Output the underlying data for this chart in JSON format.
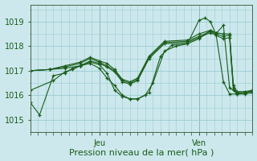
{
  "background_color": "#cce8ec",
  "grid_color": "#99ccd4",
  "line_color": "#1a5c1a",
  "marker_color": "#1a5c1a",
  "xlabel": "Pression niveau de la mer( hPa )",
  "xlabel_fontsize": 8,
  "tick_fontsize": 7,
  "ylim": [
    1014.5,
    1019.7
  ],
  "yticks": [
    1015,
    1016,
    1017,
    1018,
    1019
  ],
  "x_jeu": 90,
  "x_ven": 220,
  "xlim": [
    0,
    290
  ],
  "series": [
    [
      0,
      1015.7,
      12,
      1015.2,
      30,
      1016.8,
      45,
      1016.9,
      55,
      1017.1,
      65,
      1017.2,
      78,
      1017.3,
      90,
      1017.1,
      100,
      1016.7,
      110,
      1016.4,
      120,
      1016.0,
      130,
      1015.85,
      140,
      1015.85,
      150,
      1016.0,
      160,
      1016.5,
      175,
      1017.8,
      190,
      1018.0,
      205,
      1018.1,
      220,
      1019.05,
      228,
      1019.15,
      235,
      1019.0,
      242,
      1018.5,
      252,
      1018.85,
      260,
      1016.3,
      270,
      1016.1,
      280,
      1016.1,
      290,
      1016.2
    ],
    [
      0,
      1016.2,
      30,
      1016.6,
      45,
      1016.95,
      55,
      1017.05,
      65,
      1017.2,
      78,
      1017.35,
      90,
      1017.25,
      100,
      1016.9,
      110,
      1016.2,
      120,
      1015.95,
      130,
      1015.85,
      140,
      1015.85,
      155,
      1016.1,
      170,
      1017.6,
      185,
      1018.05,
      205,
      1018.1,
      220,
      1018.3,
      235,
      1018.65,
      242,
      1018.55,
      252,
      1016.55,
      260,
      1016.05,
      270,
      1016.05,
      280,
      1016.1,
      290,
      1016.2
    ],
    [
      0,
      1017.0,
      25,
      1017.05,
      45,
      1017.1,
      65,
      1017.2,
      78,
      1017.4,
      90,
      1017.3,
      100,
      1017.15,
      110,
      1016.95,
      120,
      1016.55,
      130,
      1016.45,
      140,
      1016.6,
      155,
      1017.5,
      175,
      1018.1,
      205,
      1018.15,
      220,
      1018.35,
      235,
      1018.55,
      242,
      1018.45,
      252,
      1018.3,
      260,
      1018.35,
      265,
      1016.2,
      270,
      1016.05,
      280,
      1016.05,
      290,
      1016.1
    ],
    [
      0,
      1017.0,
      25,
      1017.05,
      45,
      1017.15,
      65,
      1017.3,
      78,
      1017.5,
      90,
      1017.35,
      100,
      1017.2,
      110,
      1017.0,
      120,
      1016.6,
      130,
      1016.5,
      140,
      1016.65,
      155,
      1017.55,
      175,
      1018.15,
      205,
      1018.2,
      220,
      1018.4,
      235,
      1018.6,
      242,
      1018.5,
      252,
      1018.4,
      260,
      1018.45,
      265,
      1016.3,
      270,
      1016.1,
      280,
      1016.1,
      290,
      1016.15
    ],
    [
      0,
      1017.0,
      25,
      1017.05,
      45,
      1017.2,
      65,
      1017.35,
      78,
      1017.55,
      90,
      1017.4,
      100,
      1017.3,
      110,
      1017.05,
      120,
      1016.65,
      130,
      1016.55,
      140,
      1016.7,
      155,
      1017.6,
      175,
      1018.2,
      205,
      1018.25,
      220,
      1018.5,
      235,
      1018.65,
      242,
      1018.55,
      252,
      1018.5,
      260,
      1018.5,
      265,
      1016.4,
      270,
      1016.15,
      280,
      1016.15,
      290,
      1016.2
    ]
  ]
}
